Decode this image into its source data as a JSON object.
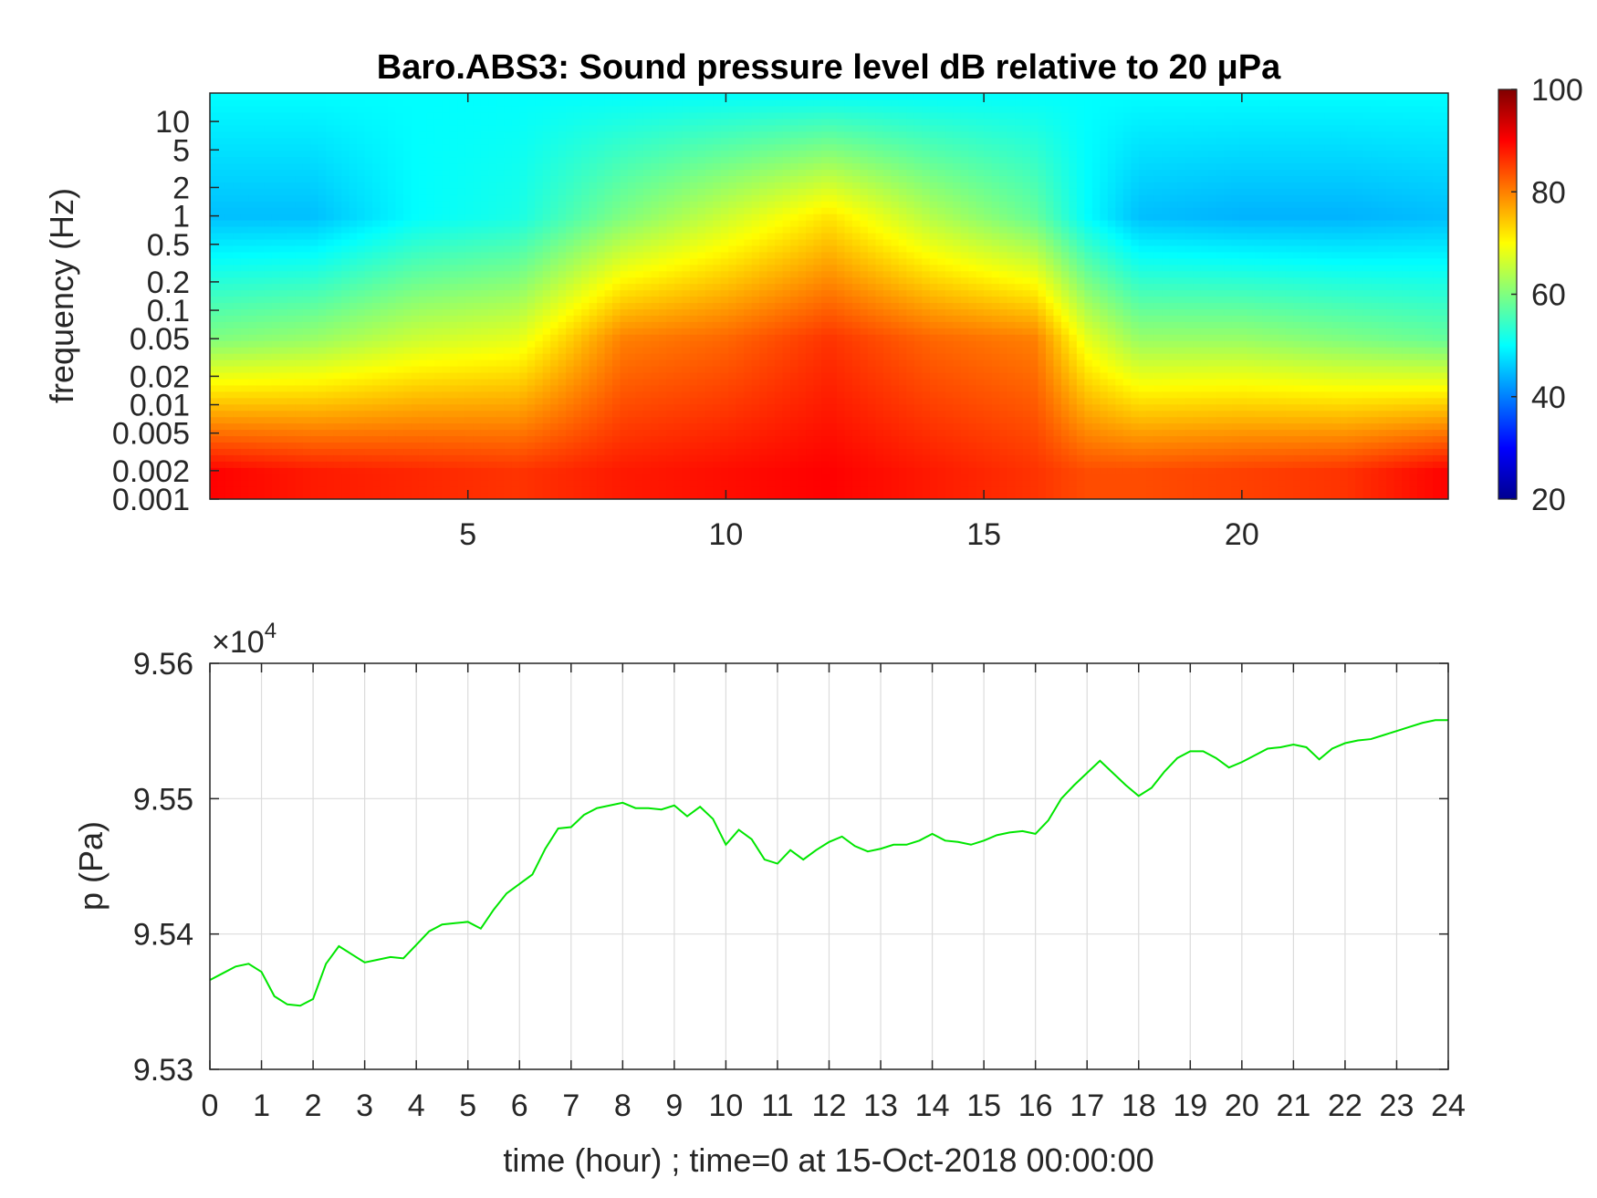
{
  "chart_data": [
    {
      "type": "heatmap",
      "title": "Baro.ABS3: Sound pressure level dB relative to 20 μPa",
      "xlabel": "",
      "ylabel": "frequency (Hz)",
      "xlim": [
        0,
        24
      ],
      "x_ticks": [
        "5",
        "10",
        "15",
        "20"
      ],
      "y_scale": "log",
      "ylim": [
        0.001,
        20
      ],
      "y_ticks": [
        "0.001",
        "0.002",
        "0.005",
        "0.01",
        "0.02",
        "0.05",
        "0.1",
        "0.2",
        "0.5",
        "1",
        "2",
        "5",
        "10"
      ],
      "colorbar": {
        "range": [
          20,
          100
        ],
        "ticks": [
          "20",
          "40",
          "60",
          "80",
          "100"
        ],
        "colormap": "jet"
      },
      "levels_db_by_hour": {
        "hours": [
          0,
          2,
          4,
          6,
          8,
          10,
          12,
          14,
          16,
          17,
          18,
          20,
          22,
          24
        ],
        "low_freq_0_002Hz": [
          90,
          88,
          87,
          86,
          88,
          89,
          90,
          88,
          86,
          84,
          84,
          85,
          86,
          90
        ],
        "mid_freq_0_05Hz": [
          60,
          62,
          66,
          68,
          80,
          82,
          86,
          82,
          80,
          68,
          62,
          62,
          60,
          58
        ],
        "high_freq_1Hz": [
          45,
          45,
          50,
          52,
          60,
          66,
          72,
          64,
          58,
          50,
          45,
          44,
          44,
          45
        ]
      }
    },
    {
      "type": "line",
      "title": "",
      "xlabel": "time (hour) ; time=0 at 15-Oct-2018 00:00:00",
      "ylabel": "p (Pa)",
      "y_exponent_label": "×10",
      "y_exponent": "4",
      "xlim": [
        0,
        24
      ],
      "ylim": [
        9.53,
        9.56
      ],
      "x_ticks": [
        "0",
        "1",
        "2",
        "3",
        "4",
        "5",
        "6",
        "7",
        "8",
        "9",
        "10",
        "11",
        "12",
        "13",
        "14",
        "15",
        "16",
        "17",
        "18",
        "19",
        "20",
        "21",
        "22",
        "23",
        "24"
      ],
      "y_ticks": [
        "9.53",
        "9.54",
        "9.55",
        "9.56"
      ],
      "grid": true,
      "series_color": "#00e600",
      "x": [
        0,
        0.25,
        0.5,
        0.75,
        1,
        1.25,
        1.5,
        1.75,
        2,
        2.25,
        2.5,
        2.75,
        3,
        3.25,
        3.5,
        3.75,
        4,
        4.25,
        4.5,
        4.75,
        5,
        5.25,
        5.5,
        5.75,
        6,
        6.25,
        6.5,
        6.75,
        7,
        7.25,
        7.5,
        7.75,
        8,
        8.25,
        8.5,
        8.75,
        9,
        9.25,
        9.5,
        9.75,
        10,
        10.25,
        10.5,
        10.75,
        11,
        11.25,
        11.5,
        11.75,
        12,
        12.25,
        12.5,
        12.75,
        13,
        13.25,
        13.5,
        13.75,
        14,
        14.25,
        14.5,
        14.75,
        15,
        15.25,
        15.5,
        15.75,
        16,
        16.25,
        16.5,
        16.75,
        17,
        17.25,
        17.5,
        17.75,
        18,
        18.25,
        18.5,
        18.75,
        19,
        19.25,
        19.5,
        19.75,
        20,
        20.25,
        20.5,
        20.75,
        21,
        21.25,
        21.5,
        21.75,
        22,
        22.25,
        22.5,
        22.75,
        23,
        23.25,
        23.5,
        23.75,
        24
      ],
      "y": [
        9.5366,
        9.5371,
        9.5376,
        9.5378,
        9.5372,
        9.5354,
        9.5348,
        9.5347,
        9.5352,
        9.5378,
        9.5391,
        9.5385,
        9.5379,
        9.5381,
        9.5383,
        9.5382,
        9.5392,
        9.5402,
        9.5407,
        9.5408,
        9.5409,
        9.5404,
        9.5418,
        9.543,
        9.5437,
        9.5444,
        9.5463,
        9.5478,
        9.5479,
        9.5488,
        9.5493,
        9.5495,
        9.5497,
        9.5493,
        9.5493,
        9.5492,
        9.5495,
        9.5487,
        9.5494,
        9.5485,
        9.5466,
        9.5477,
        9.547,
        9.5455,
        9.5452,
        9.5462,
        9.5455,
        9.5462,
        9.5468,
        9.5472,
        9.5465,
        9.5461,
        9.5463,
        9.5466,
        9.5466,
        9.5469,
        9.5474,
        9.5469,
        9.5468,
        9.5466,
        9.5469,
        9.5473,
        9.5475,
        9.5476,
        9.5474,
        9.5484,
        9.55,
        9.551,
        9.5519,
        9.5528,
        9.5519,
        9.551,
        9.5502,
        9.5508,
        9.552,
        9.553,
        9.5535,
        9.5535,
        9.553,
        9.5523,
        9.5527,
        9.5532,
        9.5537,
        9.5538,
        9.554,
        9.5538,
        9.5529,
        9.5537,
        9.5541,
        9.5543,
        9.5544,
        9.5547,
        9.555,
        9.5553,
        9.5556,
        9.5558,
        9.5558
      ]
    }
  ]
}
